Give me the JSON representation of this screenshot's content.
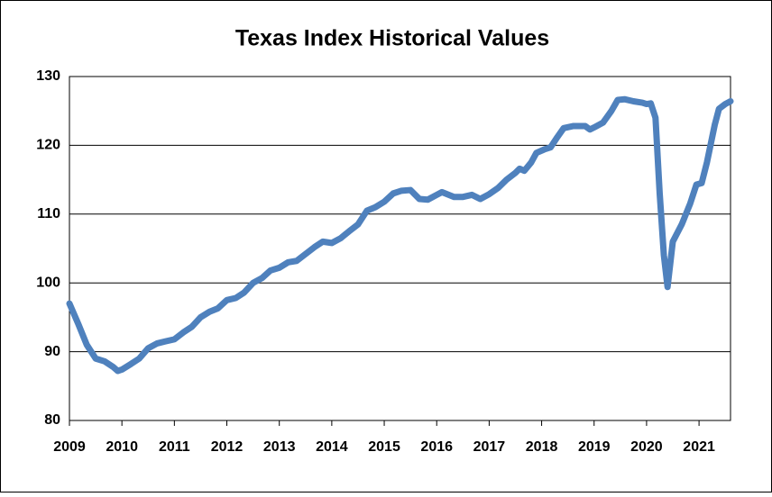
{
  "chart_data": {
    "type": "line",
    "title": "Texas Index Historical  Values",
    "x": [
      2009.0,
      2009.17,
      2009.33,
      2009.5,
      2009.67,
      2009.83,
      2009.92,
      2010.0,
      2010.17,
      2010.33,
      2010.5,
      2010.67,
      2010.83,
      2011.0,
      2011.17,
      2011.33,
      2011.5,
      2011.67,
      2011.83,
      2012.0,
      2012.17,
      2012.33,
      2012.5,
      2012.67,
      2012.83,
      2013.0,
      2013.17,
      2013.33,
      2013.5,
      2013.67,
      2013.83,
      2014.0,
      2014.17,
      2014.33,
      2014.5,
      2014.67,
      2014.83,
      2015.0,
      2015.17,
      2015.33,
      2015.5,
      2015.67,
      2015.83,
      2016.0,
      2016.1,
      2016.33,
      2016.5,
      2016.67,
      2016.83,
      2017.0,
      2017.17,
      2017.33,
      2017.5,
      2017.58,
      2017.67,
      2017.8,
      2017.9,
      2018.05,
      2018.17,
      2018.3,
      2018.42,
      2018.6,
      2018.83,
      2018.92,
      2019.0,
      2019.17,
      2019.33,
      2019.45,
      2019.58,
      2019.75,
      2019.92,
      2020.0,
      2020.08,
      2020.17,
      2020.25,
      2020.33,
      2020.4,
      2020.5,
      2020.67,
      2020.83,
      2020.95,
      2021.05,
      2021.15,
      2021.3,
      2021.38,
      2021.5,
      2021.6
    ],
    "series": [
      {
        "color": "#4f81bd",
        "values": [
          97,
          94,
          91,
          89,
          88.6,
          87.8,
          87.2,
          87.4,
          88.2,
          89,
          90.5,
          91.2,
          91.5,
          91.8,
          92.8,
          93.6,
          95,
          95.8,
          96.3,
          97.5,
          97.8,
          98.6,
          100,
          100.7,
          101.8,
          102.2,
          103,
          103.2,
          104.2,
          105.2,
          106,
          105.8,
          106.5,
          107.5,
          108.5,
          110.5,
          111,
          111.8,
          113,
          113.4,
          113.5,
          112.2,
          112.1,
          112.8,
          113.2,
          112.5,
          112.5,
          112.8,
          112.2,
          112.9,
          113.8,
          115,
          116,
          116.6,
          116.3,
          117.5,
          118.9,
          119.4,
          119.7,
          121.2,
          122.5,
          122.8,
          122.8,
          122.3,
          122.6,
          123.3,
          125,
          126.6,
          126.7,
          126.4,
          126.2,
          126,
          126.1,
          124,
          113,
          104,
          99.4,
          106,
          108.5,
          111.5,
          114.3,
          114.5,
          117.5,
          123,
          125.3,
          126,
          126.4
        ]
      }
    ],
    "xlim": [
      2009,
      2021.6
    ],
    "xticks": [
      2009,
      2010,
      2011,
      2012,
      2013,
      2014,
      2015,
      2016,
      2017,
      2018,
      2019,
      2020,
      2021
    ],
    "ylim": [
      80,
      130
    ],
    "yticks": [
      80,
      90,
      100,
      110,
      120,
      130
    ],
    "grid": true
  }
}
